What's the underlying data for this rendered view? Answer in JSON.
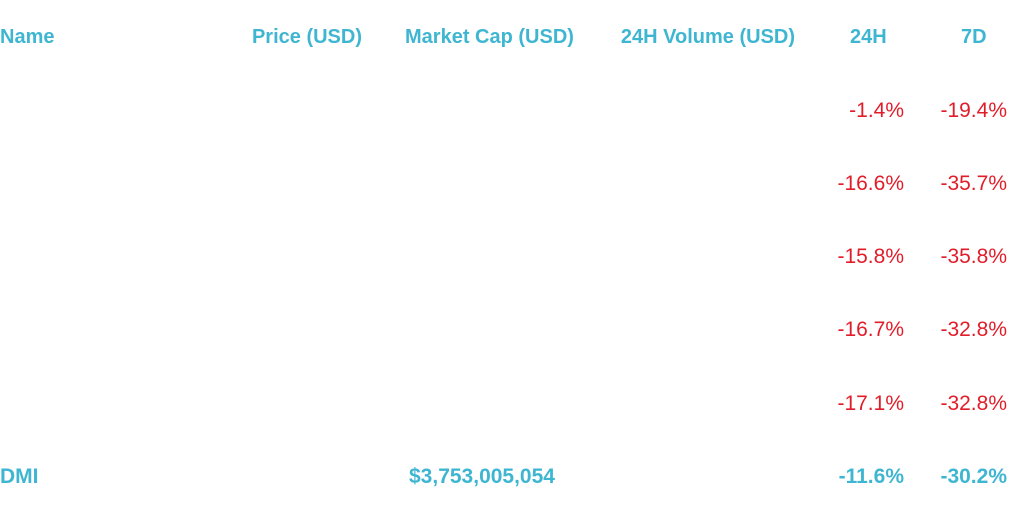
{
  "colors": {
    "header": "#3fb6d1",
    "negative": "#e11d2a",
    "background": "#ffffff"
  },
  "header": {
    "name": "Name",
    "price": "Price (USD)",
    "market_cap": "Market Cap (USD)",
    "volume_24h": "24H Volume (USD)",
    "change_24h": "24H",
    "change_7d": "7D"
  },
  "rows": [
    {
      "change_24h": "-1.4%",
      "change_7d": "-19.4%"
    },
    {
      "change_24h": "-16.6%",
      "change_7d": "-35.7%"
    },
    {
      "change_24h": "-15.8%",
      "change_7d": "-35.8%"
    },
    {
      "change_24h": "-16.7%",
      "change_7d": "-32.8%"
    },
    {
      "change_24h": "-17.1%",
      "change_7d": "-32.8%"
    }
  ],
  "summary": {
    "name": "DMI",
    "market_cap": "$3,753,005,054",
    "change_24h": "-11.6%",
    "change_7d": "-30.2%"
  }
}
